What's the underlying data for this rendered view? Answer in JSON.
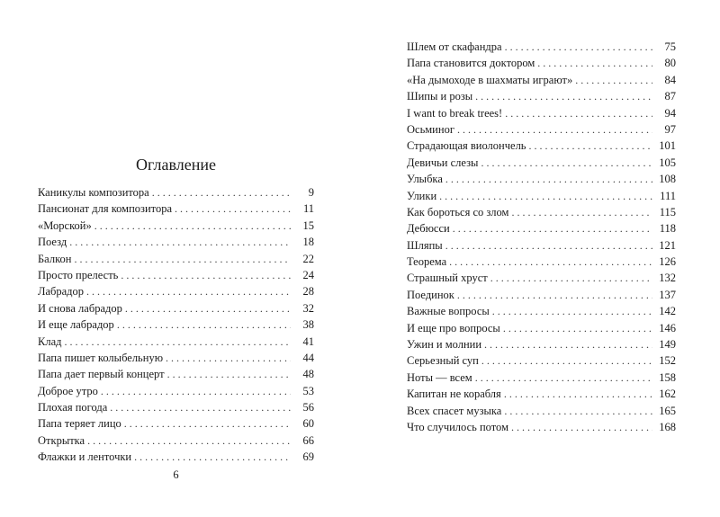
{
  "left_page": {
    "title": "Оглавление",
    "page_number": "6",
    "entries": [
      {
        "title": "Каникулы композитора",
        "page": "9"
      },
      {
        "title": "Пансионат для композитора",
        "page": "11"
      },
      {
        "title": "«Морской»",
        "page": "15"
      },
      {
        "title": "Поезд",
        "page": "18"
      },
      {
        "title": "Балкон",
        "page": "22"
      },
      {
        "title": "Просто прелесть",
        "page": "24"
      },
      {
        "title": "Лабрадор",
        "page": "28"
      },
      {
        "title": "И снова лабрадор",
        "page": "32"
      },
      {
        "title": "И еще лабрадор",
        "page": "38"
      },
      {
        "title": "Клад",
        "page": "41"
      },
      {
        "title": "Папа пишет колыбельную",
        "page": "44"
      },
      {
        "title": "Папа дает первый концерт",
        "page": "48"
      },
      {
        "title": "Доброе утро",
        "page": "53"
      },
      {
        "title": "Плохая погода",
        "page": "56"
      },
      {
        "title": "Папа теряет лицо",
        "page": "60"
      },
      {
        "title": "Открытка",
        "page": "66"
      },
      {
        "title": "Флажки и ленточки",
        "page": "69"
      }
    ]
  },
  "right_page": {
    "entries": [
      {
        "title": "Шлем от скафандра",
        "page": "75"
      },
      {
        "title": "Папа становится доктором",
        "page": "80"
      },
      {
        "title": "«На дымоходе в шахматы играют»",
        "page": "84"
      },
      {
        "title": "Шипы и розы",
        "page": "87"
      },
      {
        "title": "I want to break trees!",
        "page": "94"
      },
      {
        "title": "Осьминог",
        "page": "97"
      },
      {
        "title": "Страдающая виолончель",
        "page": "101"
      },
      {
        "title": "Девичьи слезы",
        "page": "105"
      },
      {
        "title": "Улыбка",
        "page": "108"
      },
      {
        "title": "Улики",
        "page": "111"
      },
      {
        "title": "Как бороться со злом",
        "page": "115"
      },
      {
        "title": "Дебюсси",
        "page": "118"
      },
      {
        "title": "Шляпы",
        "page": "121"
      },
      {
        "title": "Теорема",
        "page": "126"
      },
      {
        "title": "Страшный хруст",
        "page": "132"
      },
      {
        "title": "Поединок",
        "page": "137"
      },
      {
        "title": "Важные вопросы",
        "page": "142"
      },
      {
        "title": "И еще про вопросы",
        "page": "146"
      },
      {
        "title": "Ужин и молнии",
        "page": "149"
      },
      {
        "title": "Серьезный суп",
        "page": "152"
      },
      {
        "title": "Ноты — всем",
        "page": "158"
      },
      {
        "title": "Капитан не корабля",
        "page": "162"
      },
      {
        "title": "Всех спасет музыка",
        "page": "165"
      },
      {
        "title": "Что случилось потом",
        "page": "168"
      }
    ]
  }
}
